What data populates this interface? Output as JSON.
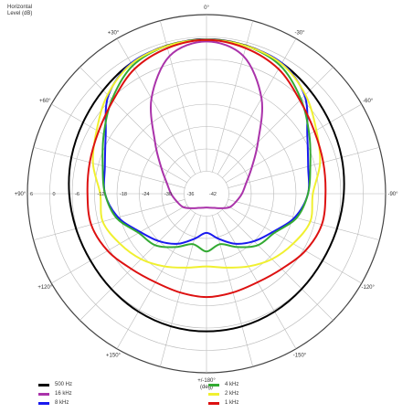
{
  "chart_data": {
    "type": "polar-line",
    "title_lines": [
      "Horizontal",
      "Level  (dB)"
    ],
    "angle_unit": "(deg)",
    "angle_ticks": [
      {
        "angle": 0,
        "label": "0°"
      },
      {
        "angle": 30,
        "label": "+30°"
      },
      {
        "angle": -30,
        "label": "-30°"
      },
      {
        "angle": 60,
        "label": "+60°"
      },
      {
        "angle": -60,
        "label": "-60°"
      },
      {
        "angle": 90,
        "label": "+90°"
      },
      {
        "angle": -90,
        "label": "-90°"
      },
      {
        "angle": 120,
        "label": "+120°"
      },
      {
        "angle": -120,
        "label": "-120°"
      },
      {
        "angle": 150,
        "label": "+150°"
      },
      {
        "angle": -150,
        "label": "-150°"
      },
      {
        "angle": 180,
        "label": "+/-180°"
      }
    ],
    "radial_range_db": [
      -42,
      6
    ],
    "radial_rings_db": [
      6,
      0,
      -6,
      -12,
      -18,
      -24,
      -30,
      -36,
      -42
    ],
    "radial_ticks": [
      {
        "db": 6,
        "label": "6"
      },
      {
        "db": 0,
        "label": "0"
      },
      {
        "db": -6,
        "label": "-6"
      },
      {
        "db": -12,
        "label": "-12"
      },
      {
        "db": -18,
        "label": "-18"
      },
      {
        "db": -24,
        "label": "-24"
      },
      {
        "db": -30,
        "label": "-30"
      },
      {
        "db": -36,
        "label": "-36"
      },
      {
        "db": -42,
        "label": "-42"
      }
    ],
    "spoke_step_deg": 15,
    "legend_columns": 2,
    "series": [
      {
        "name": "500 Hz",
        "color": "#000000",
        "angles": [
          0,
          15,
          30,
          45,
          60,
          75,
          90,
          105,
          120,
          135,
          150,
          165,
          180
        ],
        "db": [
          -0.6,
          -0.9,
          -1.6,
          -2.8,
          -3.8,
          -4.5,
          -5.2,
          -5.8,
          -6.1,
          -5.9,
          -5.5,
          -5.2,
          -5.1
        ]
      },
      {
        "name": "16 kHz",
        "color": "#aa33aa",
        "angles": [
          0,
          15,
          30,
          45,
          60,
          75,
          90,
          105,
          120,
          135,
          150,
          165,
          180
        ],
        "db": [
          -1.2,
          -3.8,
          -12.5,
          -22.5,
          -28.0,
          -31.0,
          -32.5,
          -33.8,
          -34.8,
          -36.5,
          -37.6,
          -38.1,
          -38.3
        ]
      },
      {
        "name": "8 kHz",
        "color": "#1a1aee",
        "angles": [
          0,
          15,
          30,
          45,
          60,
          75,
          90,
          105,
          120,
          135,
          150,
          165,
          180
        ],
        "db": [
          -0.8,
          -1.0,
          -1.6,
          -4.8,
          -10.8,
          -13.8,
          -14.8,
          -17.5,
          -21.5,
          -24.0,
          -26.5,
          -29.5,
          -31.5
        ]
      },
      {
        "name": "4 kHz",
        "color": "#33aa33",
        "angles": [
          0,
          15,
          30,
          45,
          60,
          75,
          90,
          105,
          120,
          135,
          150,
          165,
          180
        ],
        "db": [
          -0.8,
          -1.0,
          -2.4,
          -6.2,
          -10.2,
          -13.2,
          -14.8,
          -17.0,
          -21.0,
          -22.5,
          -25.5,
          -28.0,
          -26.5
        ]
      },
      {
        "name": "2 kHz",
        "color": "#f0f030",
        "angles": [
          0,
          15,
          30,
          45,
          60,
          75,
          90,
          105,
          120,
          135,
          150,
          165,
          180
        ],
        "db": [
          -0.8,
          -1.0,
          -1.8,
          -4.5,
          -8.0,
          -10.5,
          -13.5,
          -13.2,
          -15.2,
          -17.2,
          -19.5,
          -21.5,
          -22.5
        ]
      },
      {
        "name": "1 kHz",
        "color": "#dd1111",
        "angles": [
          0,
          15,
          30,
          45,
          60,
          75,
          90,
          105,
          120,
          135,
          150,
          165,
          180
        ],
        "db": [
          -0.8,
          -1.6,
          -3.4,
          -6.6,
          -8.6,
          -9.6,
          -10.1,
          -10.0,
          -11.4,
          -13.5,
          -14.6,
          -14.6,
          -14.3
        ]
      }
    ]
  }
}
